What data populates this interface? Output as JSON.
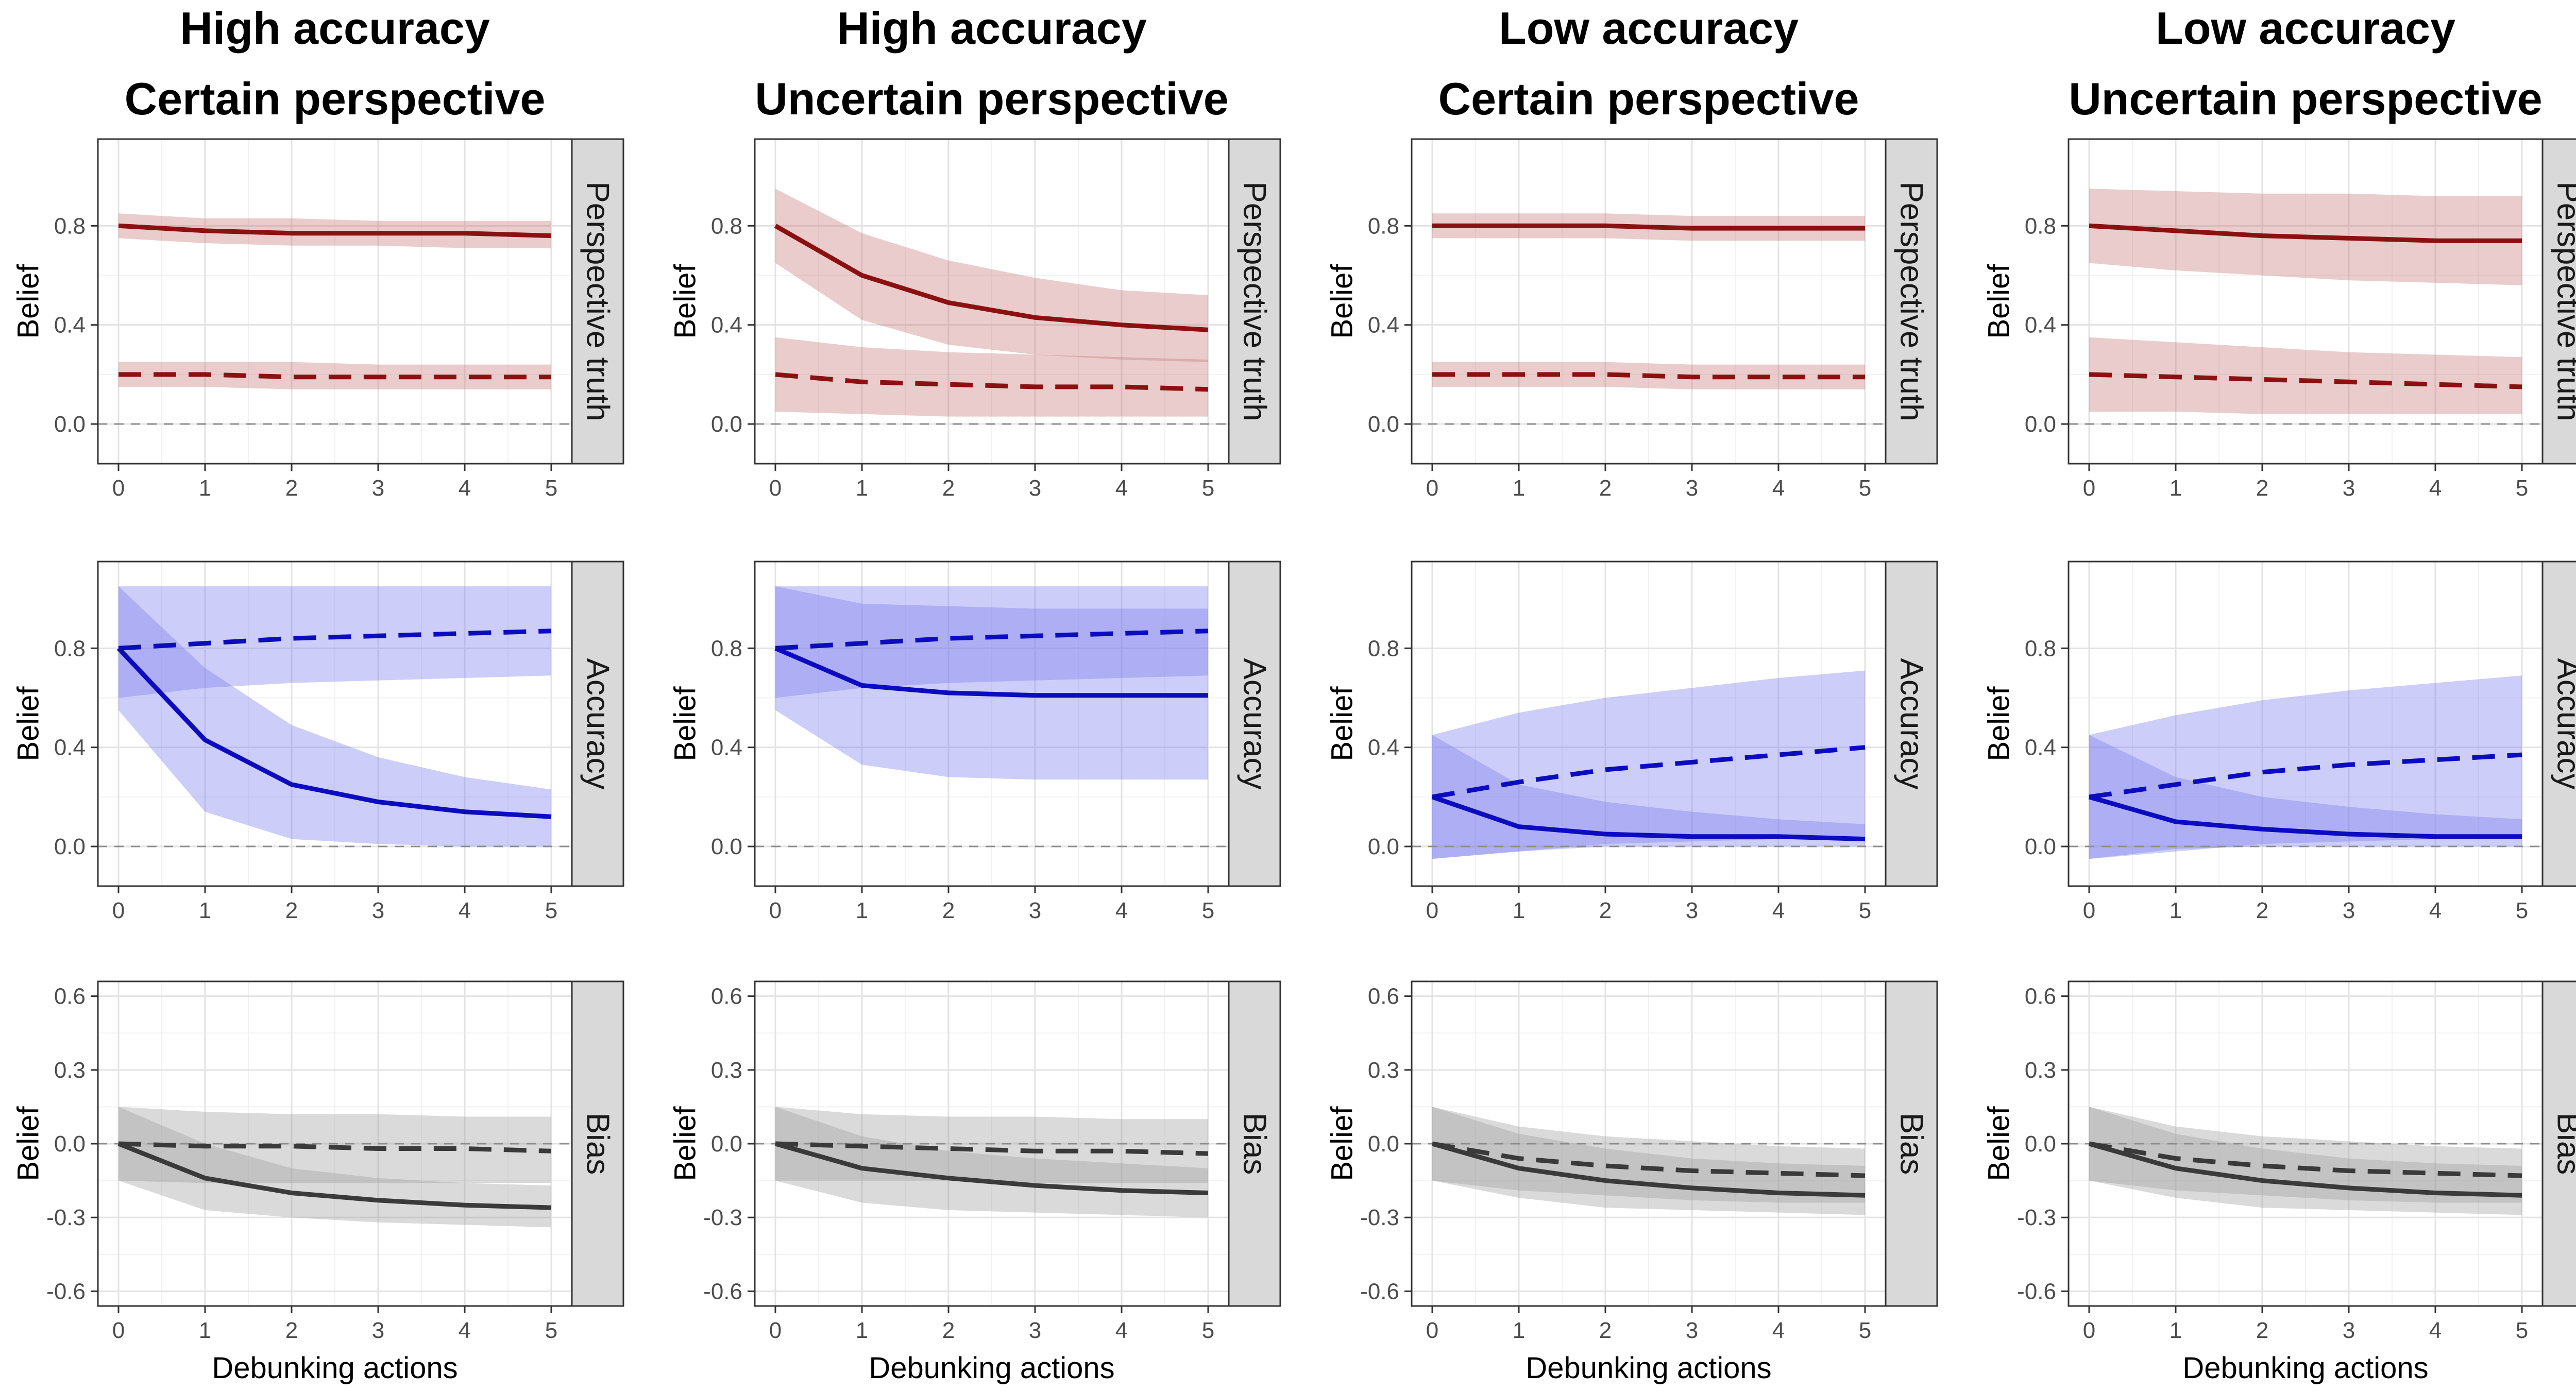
{
  "figure": {
    "columns": [
      {
        "title_line1": "High accuracy",
        "title_line2": "Certain perspective"
      },
      {
        "title_line1": "High accuracy",
        "title_line2": "Uncertain perspective"
      },
      {
        "title_line1": "Low accuracy",
        "title_line2": "Certain perspective"
      },
      {
        "title_line1": "Low accuracy",
        "title_line2": "Uncertain perspective"
      }
    ],
    "rows": [
      {
        "strip": "Perspective truth",
        "color": "#8b1111",
        "ribbon_color": "#c97a7a",
        "yticks": [
          0.0,
          0.4,
          0.8
        ],
        "ytick_labels": [
          "0.0",
          "0.4",
          "0.8"
        ]
      },
      {
        "strip": "Accuracy",
        "color": "#0b0bbf",
        "ribbon_color": "#7c7cee",
        "yticks": [
          0.0,
          0.4,
          0.8
        ],
        "ytick_labels": [
          "0.0",
          "0.4",
          "0.8"
        ]
      },
      {
        "strip": "Bias",
        "color": "#3a3a3a",
        "ribbon_color": "#9e9e9e",
        "yticks": [
          -0.6,
          -0.3,
          0.0,
          0.3,
          0.6
        ],
        "ytick_labels": [
          "-0.6",
          "-0.3",
          "0.0",
          "0.3",
          "0.6"
        ]
      }
    ],
    "ylabel": "Belief",
    "xlabel": "Debunking actions",
    "xticks": [
      0,
      1,
      2,
      3,
      4,
      5
    ],
    "xtick_labels": [
      "0",
      "1",
      "2",
      "3",
      "4",
      "5"
    ]
  },
  "chart_data": [
    {
      "type": "line",
      "panel": "High accuracy / Certain perspective / Perspective truth",
      "x": [
        0,
        1,
        2,
        3,
        4,
        5
      ],
      "ylim": [
        -0.16,
        1.15
      ],
      "reference_line": 0,
      "series": [
        {
          "style": "solid",
          "values": [
            0.8,
            0.78,
            0.77,
            0.77,
            0.77,
            0.76
          ],
          "lower": [
            0.75,
            0.73,
            0.72,
            0.72,
            0.71,
            0.71
          ],
          "upper": [
            0.85,
            0.83,
            0.83,
            0.82,
            0.82,
            0.82
          ]
        },
        {
          "style": "dashed",
          "values": [
            0.2,
            0.2,
            0.19,
            0.19,
            0.19,
            0.19
          ],
          "lower": [
            0.15,
            0.15,
            0.14,
            0.14,
            0.14,
            0.14
          ],
          "upper": [
            0.25,
            0.25,
            0.25,
            0.24,
            0.24,
            0.24
          ]
        }
      ]
    },
    {
      "type": "line",
      "panel": "High accuracy / Uncertain perspective / Perspective truth",
      "x": [
        0,
        1,
        2,
        3,
        4,
        5
      ],
      "ylim": [
        -0.16,
        1.15
      ],
      "reference_line": 0,
      "series": [
        {
          "style": "solid",
          "values": [
            0.8,
            0.6,
            0.49,
            0.43,
            0.4,
            0.38
          ],
          "lower": [
            0.65,
            0.42,
            0.32,
            0.28,
            0.26,
            0.25
          ],
          "upper": [
            0.95,
            0.77,
            0.66,
            0.59,
            0.54,
            0.52
          ]
        },
        {
          "style": "dashed",
          "values": [
            0.2,
            0.17,
            0.16,
            0.15,
            0.15,
            0.14
          ],
          "lower": [
            0.05,
            0.04,
            0.03,
            0.03,
            0.03,
            0.03
          ],
          "upper": [
            0.35,
            0.31,
            0.29,
            0.28,
            0.27,
            0.26
          ]
        }
      ]
    },
    {
      "type": "line",
      "panel": "Low accuracy / Certain perspective / Perspective truth",
      "x": [
        0,
        1,
        2,
        3,
        4,
        5
      ],
      "ylim": [
        -0.16,
        1.15
      ],
      "reference_line": 0,
      "series": [
        {
          "style": "solid",
          "values": [
            0.8,
            0.8,
            0.8,
            0.79,
            0.79,
            0.79
          ],
          "lower": [
            0.75,
            0.75,
            0.75,
            0.74,
            0.74,
            0.74
          ],
          "upper": [
            0.85,
            0.85,
            0.85,
            0.84,
            0.84,
            0.84
          ]
        },
        {
          "style": "dashed",
          "values": [
            0.2,
            0.2,
            0.2,
            0.19,
            0.19,
            0.19
          ],
          "lower": [
            0.15,
            0.15,
            0.15,
            0.14,
            0.14,
            0.14
          ],
          "upper": [
            0.25,
            0.25,
            0.25,
            0.24,
            0.24,
            0.24
          ]
        }
      ]
    },
    {
      "type": "line",
      "panel": "Low accuracy / Uncertain perspective / Perspective truth",
      "x": [
        0,
        1,
        2,
        3,
        4,
        5
      ],
      "ylim": [
        -0.16,
        1.15
      ],
      "reference_line": 0,
      "series": [
        {
          "style": "solid",
          "values": [
            0.8,
            0.78,
            0.76,
            0.75,
            0.74,
            0.74
          ],
          "lower": [
            0.65,
            0.62,
            0.6,
            0.58,
            0.57,
            0.56
          ],
          "upper": [
            0.95,
            0.94,
            0.93,
            0.93,
            0.92,
            0.92
          ]
        },
        {
          "style": "dashed",
          "values": [
            0.2,
            0.19,
            0.18,
            0.17,
            0.16,
            0.15
          ],
          "lower": [
            0.05,
            0.05,
            0.04,
            0.04,
            0.04,
            0.04
          ],
          "upper": [
            0.35,
            0.33,
            0.31,
            0.29,
            0.28,
            0.27
          ]
        }
      ]
    },
    {
      "type": "line",
      "panel": "High accuracy / Certain perspective / Accuracy",
      "x": [
        0,
        1,
        2,
        3,
        4,
        5
      ],
      "ylim": [
        -0.16,
        1.15
      ],
      "reference_line": 0,
      "series": [
        {
          "style": "solid",
          "values": [
            0.8,
            0.43,
            0.25,
            0.18,
            0.14,
            0.12
          ],
          "lower": [
            0.55,
            0.14,
            0.03,
            0.01,
            0.0,
            0.0
          ],
          "upper": [
            1.05,
            0.72,
            0.49,
            0.36,
            0.28,
            0.23
          ]
        },
        {
          "style": "dashed",
          "values": [
            0.8,
            0.82,
            0.84,
            0.85,
            0.86,
            0.87
          ],
          "lower": [
            0.6,
            0.64,
            0.66,
            0.67,
            0.68,
            0.69
          ],
          "upper": [
            1.05,
            1.05,
            1.05,
            1.05,
            1.05,
            1.05
          ]
        }
      ]
    },
    {
      "type": "line",
      "panel": "High accuracy / Uncertain perspective / Accuracy",
      "x": [
        0,
        1,
        2,
        3,
        4,
        5
      ],
      "ylim": [
        -0.16,
        1.15
      ],
      "reference_line": 0,
      "series": [
        {
          "style": "solid",
          "values": [
            0.8,
            0.65,
            0.62,
            0.61,
            0.61,
            0.61
          ],
          "lower": [
            0.55,
            0.33,
            0.28,
            0.27,
            0.27,
            0.27
          ],
          "upper": [
            1.05,
            0.98,
            0.97,
            0.96,
            0.96,
            0.96
          ]
        },
        {
          "style": "dashed",
          "values": [
            0.8,
            0.82,
            0.84,
            0.85,
            0.86,
            0.87
          ],
          "lower": [
            0.6,
            0.64,
            0.66,
            0.67,
            0.68,
            0.69
          ],
          "upper": [
            1.05,
            1.05,
            1.05,
            1.05,
            1.05,
            1.05
          ]
        }
      ]
    },
    {
      "type": "line",
      "panel": "Low accuracy / Certain perspective / Accuracy",
      "x": [
        0,
        1,
        2,
        3,
        4,
        5
      ],
      "ylim": [
        -0.16,
        1.15
      ],
      "reference_line": 0,
      "series": [
        {
          "style": "solid",
          "values": [
            0.2,
            0.08,
            0.05,
            0.04,
            0.04,
            0.03
          ],
          "lower": [
            -0.05,
            -0.02,
            0.0,
            0.0,
            0.0,
            0.0
          ],
          "upper": [
            0.45,
            0.25,
            0.18,
            0.14,
            0.11,
            0.09
          ]
        },
        {
          "style": "dashed",
          "values": [
            0.2,
            0.26,
            0.31,
            0.34,
            0.37,
            0.4
          ],
          "lower": [
            -0.05,
            -0.02,
            0.01,
            0.02,
            0.03,
            0.04
          ],
          "upper": [
            0.45,
            0.54,
            0.6,
            0.64,
            0.68,
            0.71
          ]
        }
      ]
    },
    {
      "type": "line",
      "panel": "Low accuracy / Uncertain perspective / Accuracy",
      "x": [
        0,
        1,
        2,
        3,
        4,
        5
      ],
      "ylim": [
        -0.16,
        1.15
      ],
      "reference_line": 0,
      "series": [
        {
          "style": "solid",
          "values": [
            0.2,
            0.1,
            0.07,
            0.05,
            0.04,
            0.04
          ],
          "lower": [
            -0.05,
            -0.01,
            0.0,
            0.0,
            0.0,
            0.0
          ],
          "upper": [
            0.45,
            0.28,
            0.2,
            0.16,
            0.13,
            0.11
          ]
        },
        {
          "style": "dashed",
          "values": [
            0.2,
            0.25,
            0.3,
            0.33,
            0.35,
            0.37
          ],
          "lower": [
            -0.05,
            -0.02,
            0.01,
            0.02,
            0.03,
            0.04
          ],
          "upper": [
            0.45,
            0.53,
            0.59,
            0.63,
            0.66,
            0.69
          ]
        }
      ]
    },
    {
      "type": "line",
      "panel": "High accuracy / Certain perspective / Bias",
      "x": [
        0,
        1,
        2,
        3,
        4,
        5
      ],
      "ylim": [
        -0.66,
        0.66
      ],
      "reference_line": 0,
      "series": [
        {
          "style": "solid",
          "values": [
            0.0,
            -0.14,
            -0.2,
            -0.23,
            -0.25,
            -0.26
          ],
          "lower": [
            -0.15,
            -0.27,
            -0.3,
            -0.32,
            -0.33,
            -0.34
          ],
          "upper": [
            0.15,
            0.0,
            -0.1,
            -0.14,
            -0.16,
            -0.17
          ]
        },
        {
          "style": "dashed",
          "values": [
            0.0,
            -0.01,
            -0.01,
            -0.02,
            -0.02,
            -0.03
          ],
          "lower": [
            -0.15,
            -0.16,
            -0.16,
            -0.16,
            -0.16,
            -0.16
          ],
          "upper": [
            0.15,
            0.13,
            0.12,
            0.12,
            0.11,
            0.11
          ]
        }
      ]
    },
    {
      "type": "line",
      "panel": "High accuracy / Uncertain perspective / Bias",
      "x": [
        0,
        1,
        2,
        3,
        4,
        5
      ],
      "ylim": [
        -0.66,
        0.66
      ],
      "reference_line": 0,
      "series": [
        {
          "style": "solid",
          "values": [
            0.0,
            -0.1,
            -0.14,
            -0.17,
            -0.19,
            -0.2
          ],
          "lower": [
            -0.15,
            -0.24,
            -0.27,
            -0.28,
            -0.29,
            -0.3
          ],
          "upper": [
            0.15,
            0.03,
            -0.03,
            -0.06,
            -0.08,
            -0.1
          ]
        },
        {
          "style": "dashed",
          "values": [
            0.0,
            -0.01,
            -0.02,
            -0.03,
            -0.03,
            -0.04
          ],
          "lower": [
            -0.15,
            -0.15,
            -0.15,
            -0.16,
            -0.16,
            -0.16
          ],
          "upper": [
            0.15,
            0.12,
            0.11,
            0.11,
            0.1,
            0.1
          ]
        }
      ]
    },
    {
      "type": "line",
      "panel": "Low accuracy / Certain perspective / Bias",
      "x": [
        0,
        1,
        2,
        3,
        4,
        5
      ],
      "ylim": [
        -0.66,
        0.66
      ],
      "reference_line": 0,
      "series": [
        {
          "style": "solid",
          "values": [
            0.0,
            -0.1,
            -0.15,
            -0.18,
            -0.2,
            -0.21
          ],
          "lower": [
            -0.15,
            -0.22,
            -0.26,
            -0.27,
            -0.28,
            -0.29
          ],
          "upper": [
            0.15,
            0.04,
            -0.02,
            -0.06,
            -0.08,
            -0.09
          ]
        },
        {
          "style": "dashed",
          "values": [
            0.0,
            -0.06,
            -0.09,
            -0.11,
            -0.12,
            -0.13
          ],
          "lower": [
            -0.15,
            -0.19,
            -0.21,
            -0.23,
            -0.24,
            -0.24
          ],
          "upper": [
            0.15,
            0.07,
            0.03,
            0.01,
            -0.01,
            -0.02
          ]
        }
      ]
    },
    {
      "type": "line",
      "panel": "Low accuracy / Uncertain perspective / Bias",
      "x": [
        0,
        1,
        2,
        3,
        4,
        5
      ],
      "ylim": [
        -0.66,
        0.66
      ],
      "reference_line": 0,
      "series": [
        {
          "style": "solid",
          "values": [
            0.0,
            -0.1,
            -0.15,
            -0.18,
            -0.2,
            -0.21
          ],
          "lower": [
            -0.15,
            -0.22,
            -0.26,
            -0.27,
            -0.28,
            -0.29
          ],
          "upper": [
            0.15,
            0.04,
            -0.02,
            -0.06,
            -0.08,
            -0.09
          ]
        },
        {
          "style": "dashed",
          "values": [
            0.0,
            -0.06,
            -0.09,
            -0.11,
            -0.12,
            -0.13
          ],
          "lower": [
            -0.15,
            -0.19,
            -0.21,
            -0.23,
            -0.24,
            -0.24
          ],
          "upper": [
            0.15,
            0.07,
            0.03,
            0.01,
            -0.01,
            -0.02
          ]
        }
      ]
    }
  ]
}
